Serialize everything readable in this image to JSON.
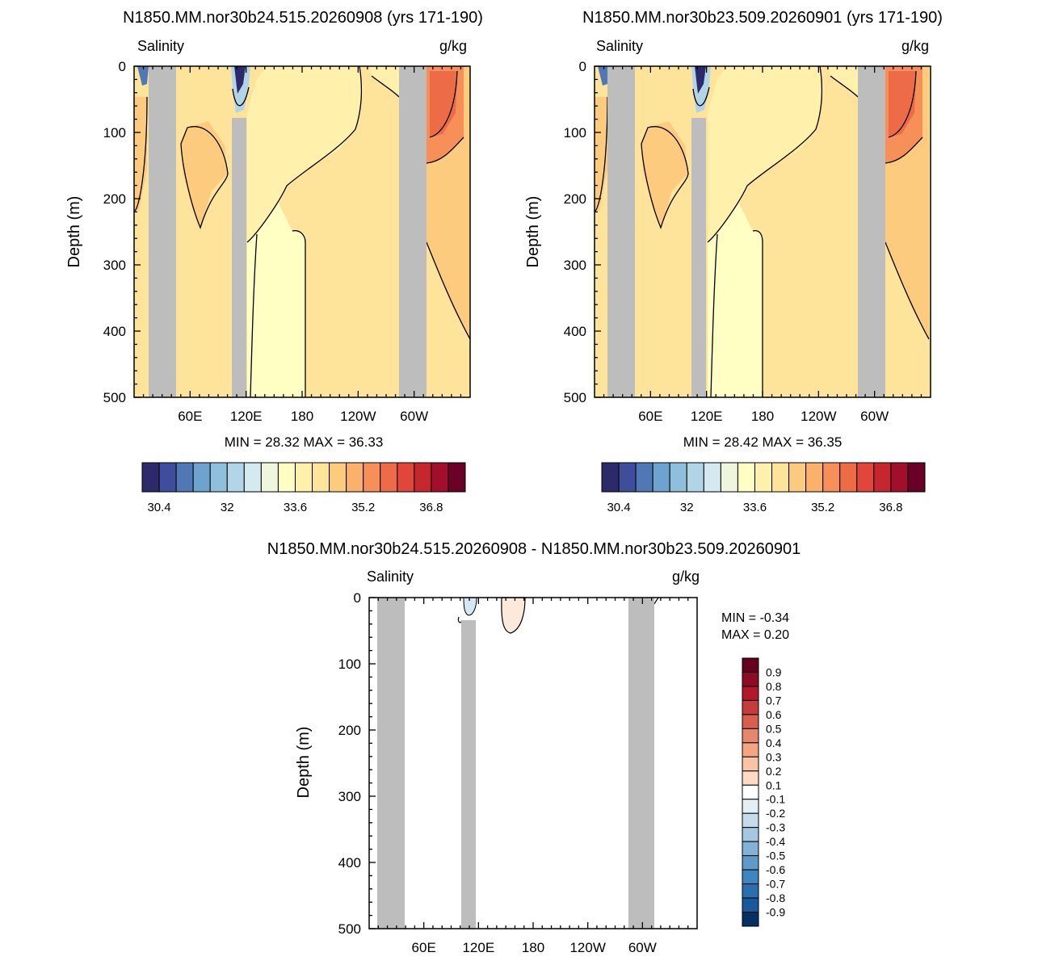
{
  "panels": [
    {
      "title": "N1850.MM.nor30b24.515.20260908 (yrs 171-190)",
      "left_label": "Salinity",
      "right_label": "g/kg",
      "ylabel": "Depth (m)",
      "stats": "MIN =  28.32  MAX =  36.33"
    },
    {
      "title": "N1850.MM.nor30b23.509.20260901 (yrs 171-190)",
      "left_label": "Salinity",
      "right_label": "g/kg",
      "ylabel": "Depth (m)",
      "stats": "MIN =  28.42  MAX =  36.35"
    },
    {
      "title": "N1850.MM.nor30b24.515.20260908 - N1850.MM.nor30b23.509.20260901",
      "left_label": "Salinity",
      "right_label": "g/kg",
      "ylabel": "Depth (m)",
      "stats_min": "MIN =  -0.34",
      "stats_max": "MAX =   0.20"
    }
  ],
  "chart_data": [
    {
      "type": "heatmap",
      "plot": "depth-longitude contour section",
      "x_ticks": [
        "60E",
        "120E",
        "180",
        "120W",
        "60W"
      ],
      "y_ticks": [
        0,
        100,
        200,
        300,
        400,
        500
      ],
      "ylim": [
        500,
        0
      ],
      "y_reversed": true,
      "missing_color": "#bdbdbd",
      "colorbar_labels": [
        "30.4",
        "32",
        "33.6",
        "35.2",
        "36.8"
      ],
      "colorbar_colors": [
        "#2c2a6a",
        "#3e4d9c",
        "#4f78b5",
        "#6ea3cf",
        "#8fbfdc",
        "#b1d5e6",
        "#d4e9f0",
        "#eef6dd",
        "#ffffc4",
        "#fff1ac",
        "#fee39a",
        "#fdcb7e",
        "#fbb06b",
        "#f68f58",
        "#ee6b47",
        "#e0473a",
        "#c6272f",
        "#a30e2d",
        "#6b0026"
      ],
      "min": 28.32,
      "max": 36.33
    },
    {
      "type": "heatmap",
      "plot": "depth-longitude contour section",
      "x_ticks": [
        "60E",
        "120E",
        "180",
        "120W",
        "60W"
      ],
      "y_ticks": [
        0,
        100,
        200,
        300,
        400,
        500
      ],
      "ylim": [
        500,
        0
      ],
      "y_reversed": true,
      "missing_color": "#bdbdbd",
      "colorbar_labels": [
        "30.4",
        "32",
        "33.6",
        "35.2",
        "36.8"
      ],
      "colorbar_colors": [
        "#2c2a6a",
        "#3e4d9c",
        "#4f78b5",
        "#6ea3cf",
        "#8fbfdc",
        "#b1d5e6",
        "#d4e9f0",
        "#eef6dd",
        "#ffffc4",
        "#fff1ac",
        "#fee39a",
        "#fdcb7e",
        "#fbb06b",
        "#f68f58",
        "#ee6b47",
        "#e0473a",
        "#c6272f",
        "#a30e2d",
        "#6b0026"
      ],
      "min": 28.42,
      "max": 36.35
    },
    {
      "type": "heatmap",
      "plot": "depth-longitude difference section",
      "x_ticks": [
        "60E",
        "120E",
        "180",
        "120W",
        "60W"
      ],
      "y_ticks": [
        0,
        100,
        200,
        300,
        400,
        500
      ],
      "ylim": [
        500,
        0
      ],
      "y_reversed": true,
      "missing_color": "#bdbdbd",
      "colorbar_labels": [
        "0.9",
        "0.8",
        "0.7",
        "0.6",
        "0.5",
        "0.4",
        "0.3",
        "0.2",
        "0.1",
        "-0.1",
        "-0.2",
        "-0.3",
        "-0.4",
        "-0.5",
        "-0.6",
        "-0.7",
        "-0.8",
        "-0.9"
      ],
      "colorbar_colors": [
        "#67001f",
        "#8e0b26",
        "#b2182b",
        "#c43c3c",
        "#d6604d",
        "#e6866a",
        "#f4a582",
        "#f8c3a6",
        "#fddbc7",
        "#ffffff",
        "#e4eef5",
        "#c6dbec",
        "#a5c8e1",
        "#82b3d6",
        "#5f9bc9",
        "#4086be",
        "#2a6fb0",
        "#195a9b",
        "#053061"
      ],
      "min": -0.34,
      "max": 0.2
    }
  ]
}
